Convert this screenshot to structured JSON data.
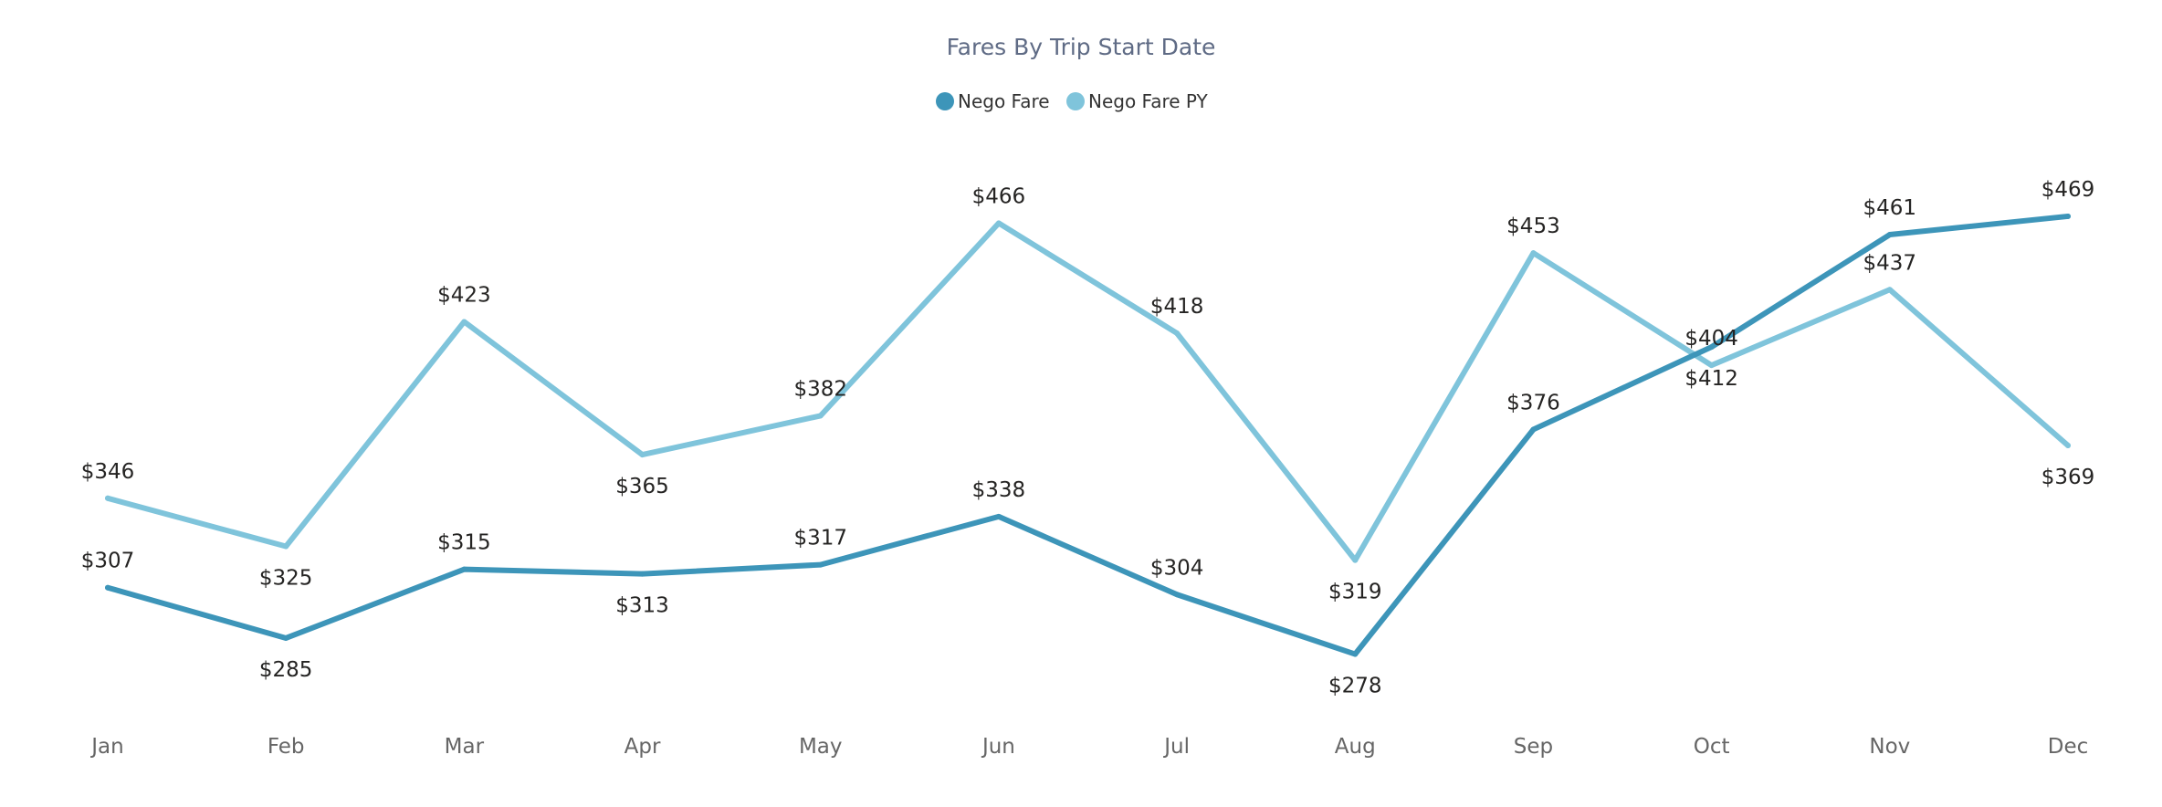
{
  "chart_data": {
    "type": "line",
    "title": "Fares By Trip Start Date",
    "xlabel": "",
    "ylabel": "",
    "categories": [
      "Jan",
      "Feb",
      "Mar",
      "Apr",
      "May",
      "Jun",
      "Jul",
      "Aug",
      "Sep",
      "Oct",
      "Nov",
      "Dec"
    ],
    "series": [
      {
        "name": "Nego Fare",
        "color": "#3d95b9",
        "values": [
          307,
          285,
          315,
          313,
          317,
          338,
          304,
          278,
          376,
          412,
          461,
          469
        ],
        "labels": [
          "$307",
          "$285",
          "$315",
          "$313",
          "$317",
          "$338",
          "$304",
          "$278",
          "$376",
          "$412",
          "$461",
          "$469"
        ]
      },
      {
        "name": "Nego Fare PY",
        "color": "#7fc4db",
        "values": [
          346,
          325,
          423,
          365,
          382,
          466,
          418,
          319,
          453,
          404,
          437,
          369
        ],
        "labels": [
          "$346",
          "$325",
          "$423",
          "$365",
          "$382",
          "$466",
          "$418",
          "$319",
          "$453",
          "$404",
          "$437",
          "$369"
        ]
      }
    ],
    "legend_position": "top-center",
    "grid": false,
    "y_axis_visible": false,
    "data_labels": true
  }
}
